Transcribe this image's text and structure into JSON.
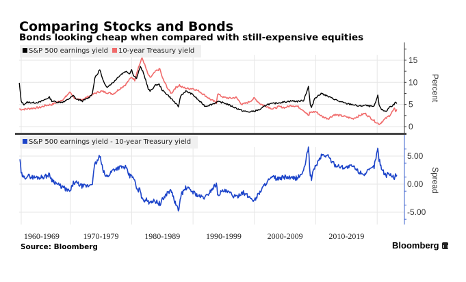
{
  "header": {
    "title": "Comparing Stocks and Bonds",
    "subtitle": "Bonds looking cheap when compared with still-expensive equities"
  },
  "footer": {
    "source": "Source: Bloomberg",
    "brand": "Bloomberg",
    "brand_icon": "bloomberg-logo-icon"
  },
  "colors": {
    "earnings": "#000000",
    "treasury": "#f06b6b",
    "spread": "#1c44c9",
    "grid": "#e6e6e6",
    "legend_bg": "#f0f0f0"
  },
  "chart_data": [
    {
      "type": "line",
      "panel": "top",
      "ylabel": "Percent",
      "ylim": [
        -1,
        18.5
      ],
      "yticks": [
        "0",
        "5",
        "10",
        "15"
      ],
      "ytick_values": [
        0,
        5,
        10,
        15
      ],
      "grid": true,
      "legend_position": "top-left",
      "x_categories": [
        "1960-1969",
        "1970-1979",
        "1980-1989",
        "1990-1999",
        "2000-2009",
        "2010-2019"
      ],
      "xlim": [
        1961.7,
        2023.2
      ],
      "series": [
        {
          "name": "S&P 500 earnings yield",
          "color_key": "earnings",
          "x": [
            1961.7,
            1961.8,
            1962.0,
            1962.4,
            1963,
            1964,
            1965,
            1966,
            1966.6,
            1967,
            1968,
            1969,
            1970,
            1970.5,
            1971,
            1972,
            1973,
            1973.6,
            1974,
            1974.5,
            1974.8,
            1975.2,
            1975.6,
            1976,
            1977,
            1978,
            1979,
            1979.7,
            1980,
            1980.3,
            1980.8,
            1981.4,
            1981.8,
            1982.3,
            1982.7,
            1983,
            1984,
            1984.5,
            1985,
            1986,
            1987,
            1987.6,
            1988,
            1988.8,
            1989.5,
            1990,
            1990.5,
            1991,
            1992,
            1993,
            1994,
            1995,
            1996,
            1997,
            1998,
            1999,
            2000,
            2001,
            2002,
            2003,
            2004,
            2005,
            2006,
            2007,
            2008,
            2008.8,
            2009.1,
            2009.3,
            2009.8,
            2010.5,
            2011,
            2012,
            2013,
            2014,
            2015,
            2016,
            2017,
            2018,
            2018.9,
            2019.5,
            2020.1,
            2020.3,
            2020.7,
            2021,
            2021.5,
            2022,
            2022.5,
            2023,
            2023.2
          ],
          "values": [
            9.8,
            8.5,
            5.8,
            5.0,
            5.5,
            5.4,
            5.5,
            6.2,
            6.6,
            5.8,
            5.5,
            5.6,
            6.5,
            7.0,
            6.2,
            5.8,
            6.5,
            7.5,
            11.0,
            12.0,
            13.0,
            11.0,
            9.5,
            9.0,
            10.0,
            11.5,
            12.5,
            12.0,
            13.0,
            11.5,
            11.0,
            13.5,
            12.5,
            10.5,
            8.5,
            8.0,
            9.5,
            9.5,
            8.2,
            7.0,
            5.5,
            4.5,
            7.0,
            8.0,
            7.6,
            7.2,
            6.5,
            5.8,
            4.6,
            5.0,
            5.6,
            5.4,
            4.8,
            4.2,
            3.6,
            3.3,
            3.5,
            3.9,
            5.0,
            5.2,
            5.4,
            5.6,
            5.8,
            5.7,
            5.9,
            9.0,
            5.0,
            4.2,
            6.4,
            7.1,
            7.5,
            6.8,
            6.2,
            5.6,
            5.2,
            5.0,
            4.6,
            4.8,
            4.6,
            4.5,
            7.0,
            5.0,
            3.9,
            3.6,
            3.5,
            4.4,
            4.8,
            5.4,
            5.2
          ]
        },
        {
          "name": "10-year Treasury yield",
          "color_key": "treasury",
          "x": [
            1961.7,
            1962,
            1963,
            1964,
            1965,
            1966,
            1967,
            1968,
            1969,
            1969.6,
            1970,
            1970.5,
            1971,
            1972,
            1973,
            1974,
            1975,
            1976,
            1977,
            1978,
            1979,
            1980,
            1980.5,
            1981,
            1981.7,
            1982,
            1982.6,
            1983,
            1984,
            1984.6,
            1985,
            1986,
            1986.5,
            1987,
            1987.8,
            1988,
            1989,
            1990,
            1991,
            1992,
            1993,
            1993.8,
            1994,
            1995,
            1996,
            1997,
            1998,
            1999,
            2000,
            2001,
            2002,
            2003,
            2004,
            2005,
            2006,
            2007,
            2008,
            2008.9,
            2009,
            2010,
            2011,
            2012,
            2013,
            2014,
            2015,
            2016,
            2017,
            2018,
            2019,
            2020,
            2020.4,
            2021,
            2022,
            2022.8,
            2023,
            2023.2
          ],
          "values": [
            4.0,
            3.9,
            4.0,
            4.2,
            4.3,
            4.8,
            5.0,
            5.6,
            6.3,
            7.3,
            7.8,
            6.8,
            6.0,
            6.2,
            6.8,
            7.5,
            8.0,
            7.7,
            7.4,
            8.5,
            9.5,
            11.2,
            10.5,
            13.0,
            15.5,
            14.5,
            12.0,
            11.0,
            12.6,
            13.0,
            11.0,
            8.3,
            7.5,
            8.6,
            9.4,
            9.0,
            8.6,
            8.6,
            8.0,
            7.0,
            6.0,
            5.4,
            7.4,
            6.6,
            6.4,
            6.6,
            5.0,
            5.5,
            6.4,
            5.1,
            4.6,
            4.0,
            4.5,
            4.3,
            4.8,
            4.6,
            3.7,
            2.4,
            3.2,
            3.4,
            2.3,
            1.8,
            2.7,
            2.5,
            2.2,
            1.8,
            2.4,
            3.0,
            1.9,
            0.8,
            0.6,
            1.4,
            2.5,
            4.0,
            3.5,
            3.9
          ]
        }
      ]
    },
    {
      "type": "line",
      "panel": "bottom",
      "ylabel": "Spread",
      "ylim": [
        -7,
        8.2
      ],
      "yticks": [
        "5.00",
        "0.00",
        "-5.00"
      ],
      "ytick_values": [
        5,
        0,
        -5
      ],
      "grid": true,
      "legend_position": "top-left",
      "series": [
        {
          "name": "S&P 500 earnings yield - 10-year Treasury yield",
          "color_key": "spread",
          "derived_from": "S&P 500 earnings yield minus 10-year Treasury yield"
        }
      ]
    }
  ],
  "axis_labels": {
    "top_y": "Percent",
    "bottom_y": "Spread"
  }
}
